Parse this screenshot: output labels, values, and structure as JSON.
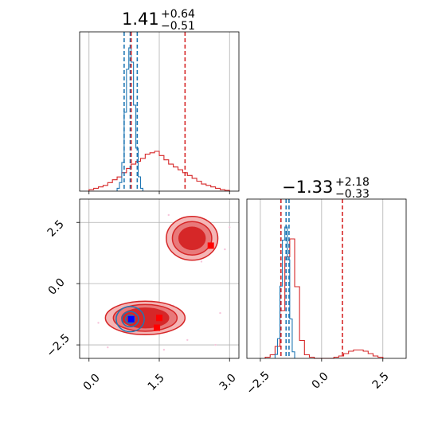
{
  "colors": {
    "red": "#d62728",
    "blue": "#1f77b4",
    "red_light": "#f4b6b6",
    "red_mid": "#e8797a",
    "blue_light": "#9ec9e8",
    "blue_marker": "#0000ff",
    "red_marker": "#ff0000"
  },
  "chart_data": [
    {
      "type": "corner-histogram",
      "panel": "x-marginal",
      "title_value": "1.41",
      "title_plus": "+0.64",
      "title_minus": "−0.51",
      "xlim": [
        -0.2,
        3.2
      ],
      "grid": true,
      "red_quantiles": [
        0.9,
        2.05
      ],
      "blue_quantiles": [
        0.75,
        0.88,
        1.03
      ],
      "series": [
        {
          "color": "red",
          "bins": [
            0.0,
            0.1,
            0.2,
            0.3,
            0.4,
            0.5,
            0.6,
            0.7,
            0.8,
            0.9,
            1.0,
            1.1,
            1.2,
            1.3,
            1.4,
            1.5,
            1.6,
            1.7,
            1.8,
            1.9,
            2.0,
            2.1,
            2.2,
            2.3,
            2.4,
            2.5,
            2.6,
            2.7,
            2.8,
            2.9,
            3.0
          ],
          "values": [
            0.01,
            0.02,
            0.03,
            0.04,
            0.06,
            0.08,
            0.1,
            0.13,
            0.16,
            0.19,
            0.21,
            0.23,
            0.26,
            0.27,
            0.28,
            0.25,
            0.22,
            0.19,
            0.17,
            0.15,
            0.13,
            0.11,
            0.09,
            0.07,
            0.05,
            0.04,
            0.03,
            0.02,
            0.01,
            0.005
          ]
        },
        {
          "color": "blue",
          "bins": [
            0.6,
            0.65,
            0.7,
            0.75,
            0.8,
            0.85,
            0.9,
            0.95,
            1.0,
            1.05,
            1.1,
            1.15
          ],
          "values": [
            0.02,
            0.06,
            0.2,
            0.55,
            0.85,
            1.0,
            0.9,
            0.6,
            0.3,
            0.1,
            0.02
          ]
        }
      ]
    },
    {
      "type": "corner-contour",
      "panel": "joint",
      "xlim": [
        -0.2,
        3.2
      ],
      "ylim": [
        -3.05,
        3.45
      ],
      "xticks": [
        "0.0",
        "1.5",
        "3.0"
      ],
      "yticks": [
        "−2.5",
        "0.0",
        "2.5"
      ],
      "grid": true,
      "red_blobs": [
        {
          "cx": 1.2,
          "cy": -1.4,
          "levels": [
            0.85,
            0.68,
            0.5
          ],
          "ry_scale": 0.42
        },
        {
          "cx": 2.2,
          "cy": 1.85,
          "levels": [
            0.55,
            0.42,
            0.28
          ],
          "ry_scale": 0.85
        }
      ],
      "blue_blob": {
        "cx": 0.88,
        "cy": -1.45,
        "levels": [
          0.3,
          0.18,
          0.1
        ],
        "ry_scale": 0.9
      },
      "markers": [
        {
          "x": 0.9,
          "y": -1.45,
          "color": "blue_marker"
        },
        {
          "x": 1.5,
          "y": -1.4,
          "color": "red_marker"
        },
        {
          "x": 1.45,
          "y": -1.8,
          "color": "red_marker"
        },
        {
          "x": 2.6,
          "y": 1.55,
          "color": "red_marker"
        }
      ]
    },
    {
      "type": "corner-histogram",
      "panel": "y-marginal",
      "title_value": "−1.33",
      "title_plus": "+2.18",
      "title_minus": "−0.33",
      "xlim": [
        -3.05,
        3.45
      ],
      "xticks": [
        "−2.5",
        "0.0",
        "2.5"
      ],
      "grid": true,
      "red_quantiles": [
        -1.66,
        0.85
      ],
      "blue_quantiles": [
        -1.66,
        -1.45,
        -1.33
      ],
      "series": [
        {
          "color": "red",
          "bins": [
            -2.3,
            -2.1,
            -1.9,
            -1.7,
            -1.5,
            -1.3,
            -1.1,
            -0.9,
            -0.7,
            -0.5,
            -0.3,
            -0.1,
            0.1,
            0.3,
            0.5,
            0.7,
            0.9,
            1.1,
            1.3,
            1.5,
            1.7,
            1.9,
            2.1,
            2.3,
            2.5
          ],
          "values": [
            0.01,
            0.03,
            0.1,
            0.4,
            0.85,
            1.0,
            0.6,
            0.15,
            0.03,
            0.01,
            0.0,
            0.0,
            0.0,
            0.0,
            0.01,
            0.02,
            0.04,
            0.06,
            0.07,
            0.07,
            0.06,
            0.04,
            0.02,
            0.01
          ]
        },
        {
          "color": "blue",
          "bins": [
            -1.9,
            -1.8,
            -1.7,
            -1.6,
            -1.5,
            -1.4,
            -1.3,
            -1.2,
            -1.1
          ],
          "values": [
            0.03,
            0.15,
            0.55,
            0.9,
            1.0,
            0.75,
            0.3,
            0.05
          ]
        }
      ]
    }
  ]
}
